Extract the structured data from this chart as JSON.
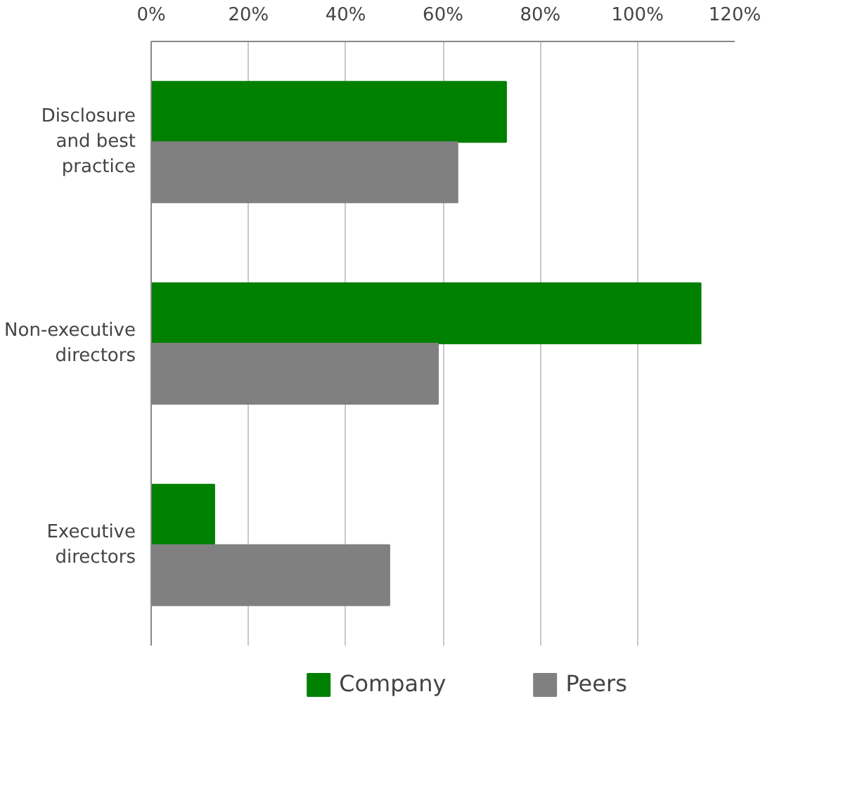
{
  "chart_data": {
    "type": "bar",
    "orientation": "horizontal",
    "categories": [
      "Disclosure and best practice",
      "Non-executive directors",
      "Executive directors"
    ],
    "series": [
      {
        "name": "Company",
        "color": "#008000",
        "values": [
          73,
          113,
          13
        ]
      },
      {
        "name": "Peers",
        "color": "#808080",
        "values": [
          63,
          59,
          49
        ]
      }
    ],
    "xlim": [
      0,
      120
    ],
    "xticks": [
      {
        "value": 0,
        "label": "0%"
      },
      {
        "value": 20,
        "label": "20%"
      },
      {
        "value": 40,
        "label": "40%"
      },
      {
        "value": 60,
        "label": "60%"
      },
      {
        "value": 80,
        "label": "80%"
      },
      {
        "value": 100,
        "label": "100%"
      },
      {
        "value": 120,
        "label": "120%"
      }
    ],
    "grid": "x",
    "legend": "bottom"
  }
}
